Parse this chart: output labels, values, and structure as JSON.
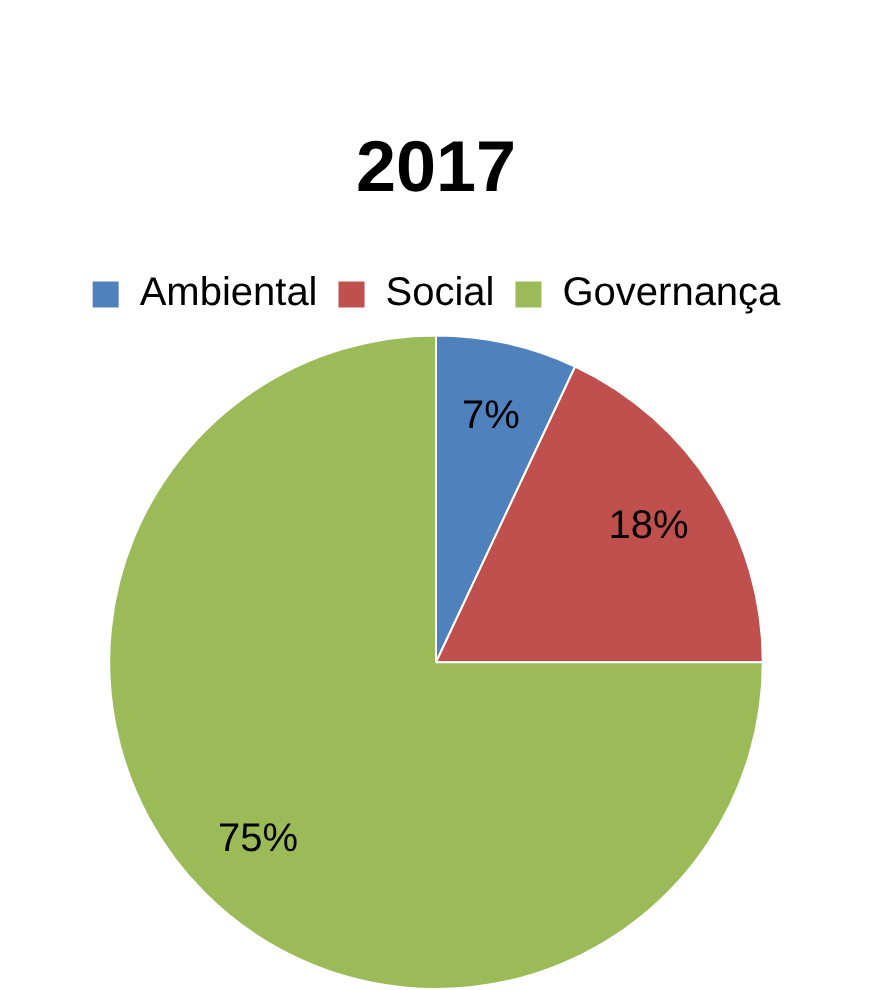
{
  "chart_data": {
    "type": "pie",
    "title": "2017",
    "categories": [
      "Ambiental",
      "Social",
      "Governança"
    ],
    "values": [
      7,
      18,
      75
    ],
    "colors": [
      "#4f81bd",
      "#c0504d",
      "#9bbb59"
    ],
    "value_labels": [
      "7%",
      "18%",
      "75%"
    ],
    "legend": "top"
  }
}
